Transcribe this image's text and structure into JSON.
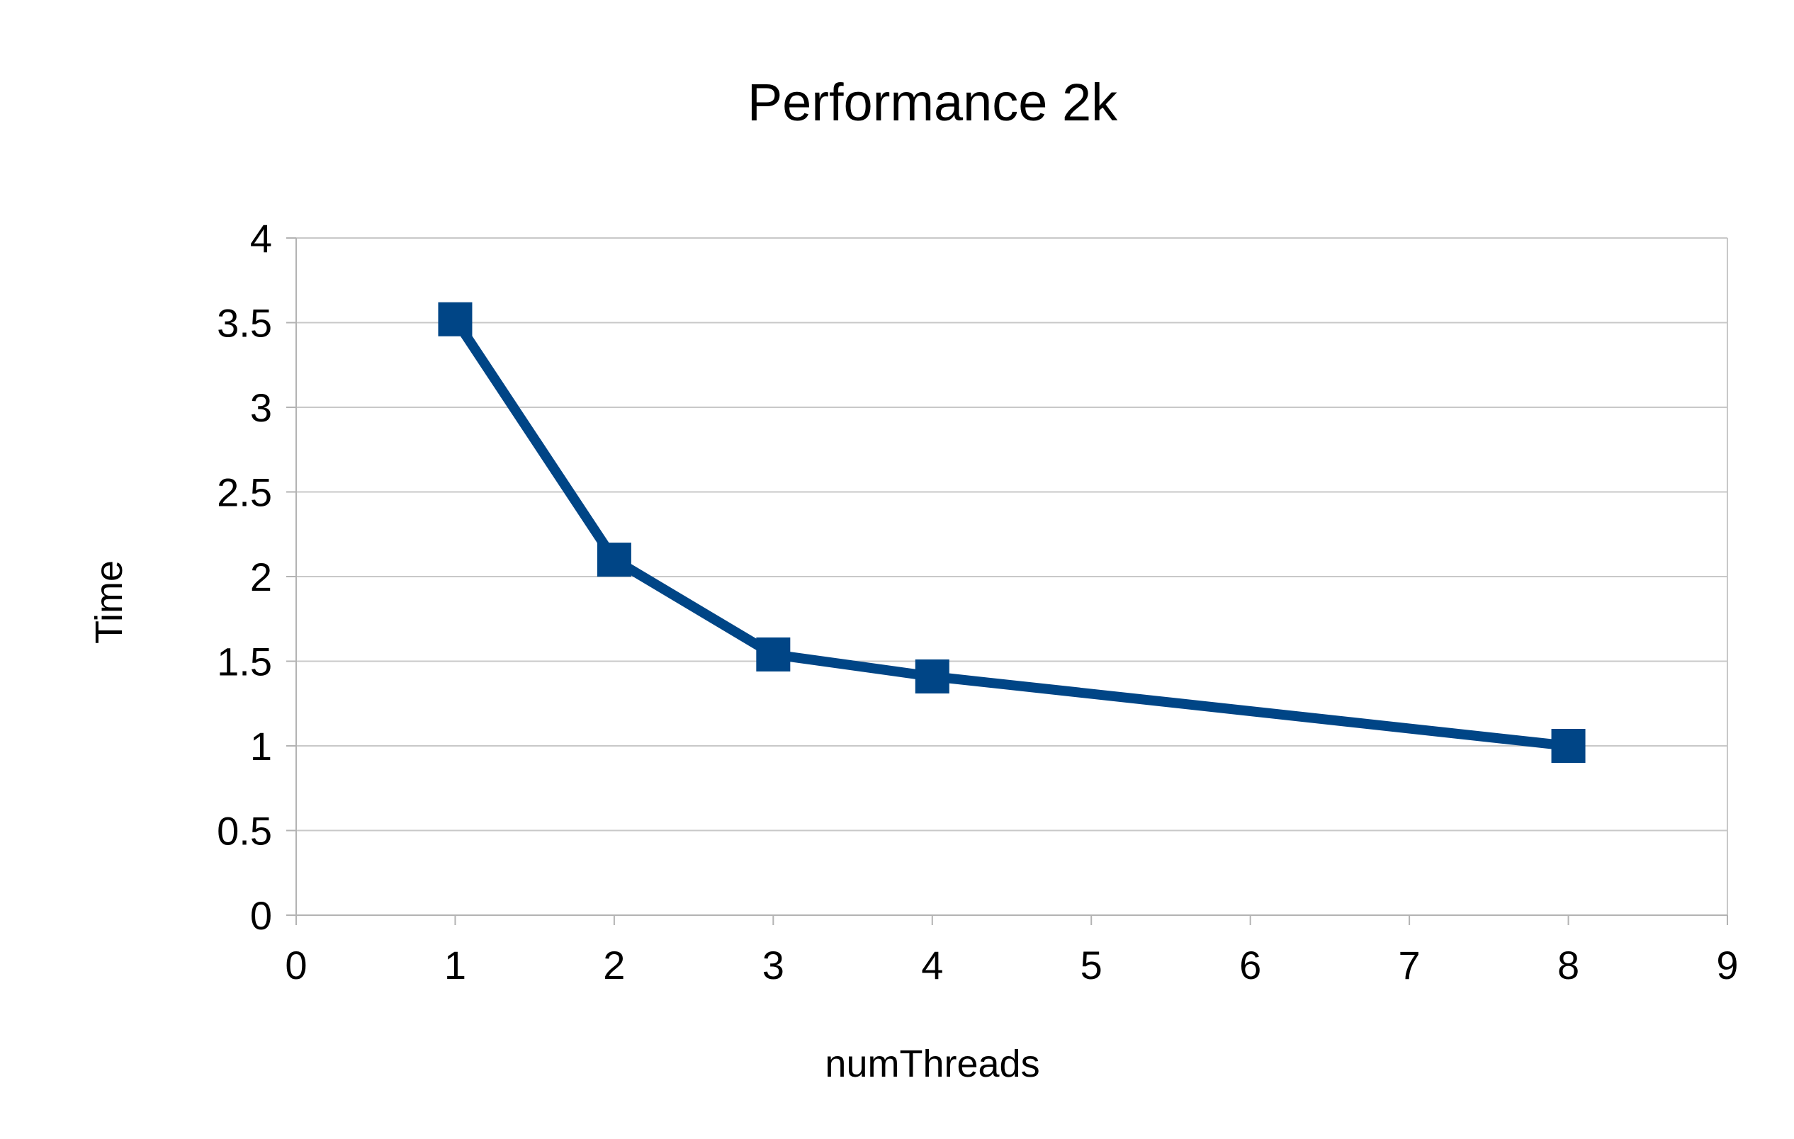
{
  "chart_data": {
    "type": "line",
    "title": "Performance 2k",
    "xlabel": "numThreads",
    "ylabel": "Time",
    "xlim": [
      0,
      9
    ],
    "ylim": [
      0,
      4
    ],
    "x_ticks": [
      "0",
      "1",
      "2",
      "3",
      "4",
      "5",
      "6",
      "7",
      "8",
      "9"
    ],
    "y_ticks": [
      "0",
      "0.5",
      "1",
      "1.5",
      "2",
      "2.5",
      "3",
      "3.5",
      "4"
    ],
    "grid": "horizontal",
    "legend": "none",
    "series": [
      {
        "x": [
          1,
          2,
          3,
          4,
          8
        ],
        "y": [
          3.52,
          2.1,
          1.54,
          1.41,
          1.0
        ],
        "color": "#004586",
        "marker": "square"
      }
    ]
  }
}
